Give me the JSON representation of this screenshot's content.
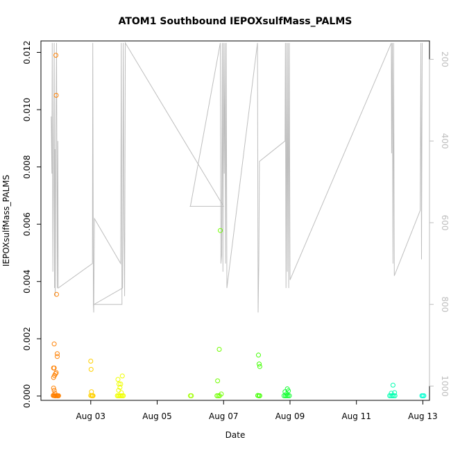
{
  "chart_data": {
    "type": "scatter",
    "title": "ATOM1 Southbound IEPOXsulfMass_PALMS",
    "xlabel": "Date",
    "ylabel": "IEPOXsulfMass_PALMS",
    "x_axis": {
      "unit": "days (Aug 2016)",
      "range": [
        1.5,
        13.2
      ],
      "ticks": [
        {
          "value": 3,
          "label": "Aug 03"
        },
        {
          "value": 5,
          "label": "Aug 05"
        },
        {
          "value": 7,
          "label": "Aug 07"
        },
        {
          "value": 9,
          "label": "Aug 09"
        },
        {
          "value": 11,
          "label": "Aug 11"
        },
        {
          "value": 13,
          "label": "Aug 13"
        }
      ]
    },
    "y_axis": {
      "range": [
        -0.00015,
        0.0124
      ],
      "ticks": [
        {
          "value": 0.0,
          "label": "0.000"
        },
        {
          "value": 0.002,
          "label": "0.002"
        },
        {
          "value": 0.004,
          "label": "0.004"
        },
        {
          "value": 0.006,
          "label": "0.006"
        },
        {
          "value": 0.008,
          "label": "0.008"
        },
        {
          "value": 0.01,
          "label": "0.010"
        },
        {
          "value": 0.012,
          "label": "0.012"
        }
      ]
    },
    "y2_axis": {
      "description": "pressure (inverted, grey)",
      "range": [
        1035,
        155
      ],
      "ticks": [
        {
          "value": 200,
          "label": "200"
        },
        {
          "value": 400,
          "label": "400"
        },
        {
          "value": 600,
          "label": "600"
        },
        {
          "value": 800,
          "label": "800"
        },
        {
          "value": 1000,
          "label": "1000"
        }
      ]
    },
    "grid": false,
    "points": [
      {
        "x": 1.95,
        "y": 0.0119,
        "color": "#ff8000"
      },
      {
        "x": 1.96,
        "y": 0.0105,
        "color": "#ff8000"
      },
      {
        "x": 1.97,
        "y": 0.00355,
        "color": "#ff8000"
      },
      {
        "x": 1.9,
        "y": 0.00182,
        "color": "#ff8000"
      },
      {
        "x": 1.99,
        "y": 0.00148,
        "color": "#ff8000"
      },
      {
        "x": 1.99,
        "y": 0.00138,
        "color": "#ff8000"
      },
      {
        "x": 1.88,
        "y": 0.00098,
        "color": "#ff8000"
      },
      {
        "x": 1.9,
        "y": 0.00098,
        "color": "#ff8000"
      },
      {
        "x": 1.96,
        "y": 0.00082,
        "color": "#ff8000"
      },
      {
        "x": 1.94,
        "y": 0.00078,
        "color": "#ff8000"
      },
      {
        "x": 1.91,
        "y": 0.00072,
        "color": "#ff8000"
      },
      {
        "x": 1.88,
        "y": 0.00065,
        "color": "#ff8000"
      },
      {
        "x": 1.88,
        "y": 0.00028,
        "color": "#ff8000"
      },
      {
        "x": 1.9,
        "y": 0.0002,
        "color": "#ff8000"
      },
      {
        "x": 1.92,
        "y": 0.0001,
        "color": "#ff8000"
      },
      {
        "x": 1.87,
        "y": 2e-05,
        "color": "#ff8000"
      },
      {
        "x": 1.89,
        "y": 2e-05,
        "color": "#ff8000"
      },
      {
        "x": 1.91,
        "y": 1e-05,
        "color": "#ff8000"
      },
      {
        "x": 1.93,
        "y": 1e-05,
        "color": "#ff8000"
      },
      {
        "x": 1.95,
        "y": 1e-05,
        "color": "#ff8000"
      },
      {
        "x": 1.97,
        "y": 2e-05,
        "color": "#ff8000"
      },
      {
        "x": 1.99,
        "y": 1e-05,
        "color": "#ff8000"
      },
      {
        "x": 2.01,
        "y": 1e-05,
        "color": "#ff8000"
      },
      {
        "x": 2.03,
        "y": 1e-05,
        "color": "#ff8000"
      },
      {
        "x": 3.0,
        "y": 0.00122,
        "color": "#ffd000"
      },
      {
        "x": 3.01,
        "y": 0.00093,
        "color": "#ffd000"
      },
      {
        "x": 3.02,
        "y": 0.00015,
        "color": "#ffd000"
      },
      {
        "x": 3.0,
        "y": 2e-05,
        "color": "#ffd000"
      },
      {
        "x": 3.03,
        "y": 1e-05,
        "color": "#ffd000"
      },
      {
        "x": 3.05,
        "y": 1e-05,
        "color": "#ffd000"
      },
      {
        "x": 3.07,
        "y": 1e-05,
        "color": "#ffd000"
      },
      {
        "x": 3.82,
        "y": 0.00058,
        "color": "#f0ff00"
      },
      {
        "x": 3.95,
        "y": 0.0007,
        "color": "#f0ff00"
      },
      {
        "x": 3.85,
        "y": 0.00042,
        "color": "#f0ff00"
      },
      {
        "x": 3.9,
        "y": 0.00042,
        "color": "#f0ff00"
      },
      {
        "x": 3.88,
        "y": 0.0003,
        "color": "#f0ff00"
      },
      {
        "x": 3.84,
        "y": 0.0002,
        "color": "#f0ff00"
      },
      {
        "x": 3.92,
        "y": 0.00012,
        "color": "#f0ff00"
      },
      {
        "x": 3.8,
        "y": 1e-05,
        "color": "#f0ff00"
      },
      {
        "x": 3.83,
        "y": 1e-05,
        "color": "#f0ff00"
      },
      {
        "x": 3.86,
        "y": 1e-05,
        "color": "#f0ff00"
      },
      {
        "x": 3.89,
        "y": 1e-05,
        "color": "#f0ff00"
      },
      {
        "x": 3.92,
        "y": 1e-05,
        "color": "#f0ff00"
      },
      {
        "x": 3.95,
        "y": 1e-05,
        "color": "#f0ff00"
      },
      {
        "x": 3.98,
        "y": 1e-05,
        "color": "#f0ff00"
      },
      {
        "x": 6.0,
        "y": 1e-05,
        "color": "#a0ff00"
      },
      {
        "x": 6.03,
        "y": 1e-05,
        "color": "#a0ff00"
      },
      {
        "x": 6.9,
        "y": 0.00578,
        "color": "#70ff00"
      },
      {
        "x": 6.87,
        "y": 0.00163,
        "color": "#70ff00"
      },
      {
        "x": 6.82,
        "y": 0.00053,
        "color": "#70ff00"
      },
      {
        "x": 6.93,
        "y": 7e-05,
        "color": "#70ff00"
      },
      {
        "x": 6.8,
        "y": 1e-05,
        "color": "#70ff00"
      },
      {
        "x": 6.84,
        "y": 1e-05,
        "color": "#70ff00"
      },
      {
        "x": 6.88,
        "y": 1e-05,
        "color": "#70ff00"
      },
      {
        "x": 8.05,
        "y": 0.00143,
        "color": "#40ff00"
      },
      {
        "x": 8.07,
        "y": 0.00112,
        "color": "#40ff00"
      },
      {
        "x": 8.09,
        "y": 0.00103,
        "color": "#40ff00"
      },
      {
        "x": 8.03,
        "y": 2e-05,
        "color": "#40ff00"
      },
      {
        "x": 8.06,
        "y": 1e-05,
        "color": "#40ff00"
      },
      {
        "x": 8.09,
        "y": 1e-05,
        "color": "#40ff00"
      },
      {
        "x": 8.92,
        "y": 0.00025,
        "color": "#10ff30"
      },
      {
        "x": 8.85,
        "y": 0.00015,
        "color": "#10ff30"
      },
      {
        "x": 8.95,
        "y": 0.00018,
        "color": "#10ff30"
      },
      {
        "x": 8.9,
        "y": 8e-05,
        "color": "#10ff30"
      },
      {
        "x": 8.82,
        "y": 1e-05,
        "color": "#10ff30"
      },
      {
        "x": 8.86,
        "y": 1e-05,
        "color": "#10ff30"
      },
      {
        "x": 8.9,
        "y": 1e-05,
        "color": "#10ff30"
      },
      {
        "x": 8.94,
        "y": 1e-05,
        "color": "#10ff30"
      },
      {
        "x": 8.98,
        "y": 1e-05,
        "color": "#10ff30"
      },
      {
        "x": 12.1,
        "y": 0.00038,
        "color": "#00ffb0"
      },
      {
        "x": 12.05,
        "y": 0.0001,
        "color": "#00ffb0"
      },
      {
        "x": 12.15,
        "y": 0.00012,
        "color": "#00ffb0"
      },
      {
        "x": 12.0,
        "y": 1e-05,
        "color": "#00ffb0"
      },
      {
        "x": 12.04,
        "y": 1e-05,
        "color": "#00ffb0"
      },
      {
        "x": 12.08,
        "y": 1e-05,
        "color": "#00ffb0"
      },
      {
        "x": 12.12,
        "y": 1e-05,
        "color": "#00ffb0"
      },
      {
        "x": 12.16,
        "y": 1e-05,
        "color": "#00ffb0"
      },
      {
        "x": 12.97,
        "y": 1e-05,
        "color": "#00ffd0"
      },
      {
        "x": 13.0,
        "y": 1e-05,
        "color": "#00ffd0"
      },
      {
        "x": 13.03,
        "y": 1e-05,
        "color": "#00ffd0"
      }
    ],
    "pressure_trace": {
      "color": "#bebebe",
      "points": [
        [
          1.81,
          340
        ],
        [
          1.83,
          480
        ],
        [
          1.84,
          160
        ],
        [
          1.86,
          720
        ],
        [
          1.88,
          440
        ],
        [
          1.9,
          160
        ],
        [
          1.91,
          760
        ],
        [
          1.92,
          420
        ],
        [
          1.93,
          780
        ],
        [
          1.95,
          380
        ],
        [
          1.97,
          160
        ],
        [
          1.99,
          760
        ],
        [
          2.01,
          400
        ],
        [
          2.02,
          760
        ],
        [
          3.05,
          700
        ],
        [
          3.06,
          160
        ],
        [
          3.08,
          800
        ],
        [
          3.09,
          820
        ],
        [
          3.11,
          590
        ],
        [
          3.9,
          700
        ],
        [
          3.92,
          160
        ],
        [
          3.94,
          800
        ],
        [
          3.1,
          800
        ],
        [
          3.96,
          760
        ],
        [
          3.98,
          160
        ],
        [
          4.0,
          620
        ],
        [
          4.02,
          780
        ],
        [
          4.04,
          160
        ],
        [
          7.0,
          560
        ],
        [
          5.98,
          560
        ],
        [
          6.0,
          560
        ],
        [
          6.9,
          160
        ],
        [
          6.92,
          700
        ],
        [
          6.94,
          680
        ],
        [
          6.96,
          160
        ],
        [
          6.98,
          720
        ],
        [
          7.0,
          160
        ],
        [
          7.02,
          480
        ],
        [
          7.04,
          160
        ],
        [
          7.06,
          700
        ],
        [
          7.08,
          160
        ],
        [
          7.1,
          760
        ],
        [
          8.02,
          160
        ],
        [
          8.04,
          820
        ],
        [
          8.06,
          700
        ],
        [
          8.08,
          450
        ],
        [
          8.85,
          400
        ],
        [
          8.86,
          160
        ],
        [
          8.88,
          760
        ],
        [
          8.9,
          160
        ],
        [
          8.92,
          720
        ],
        [
          8.94,
          160
        ],
        [
          8.96,
          760
        ],
        [
          8.98,
          160
        ],
        [
          9.0,
          740
        ],
        [
          12.05,
          160
        ],
        [
          12.06,
          430
        ],
        [
          12.08,
          160
        ],
        [
          12.1,
          700
        ],
        [
          12.12,
          160
        ],
        [
          12.14,
          730
        ],
        [
          12.92,
          570
        ],
        [
          12.94,
          160
        ],
        [
          12.96,
          690
        ],
        [
          12.98,
          160
        ]
      ]
    }
  }
}
